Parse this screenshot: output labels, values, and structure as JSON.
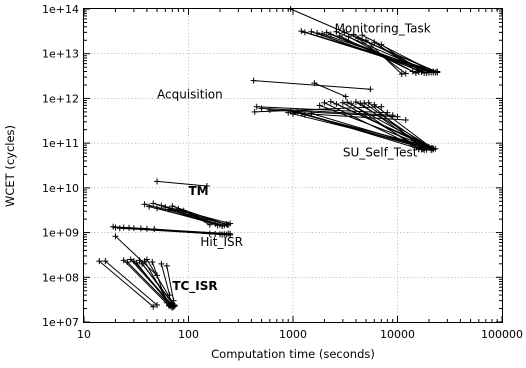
{
  "chart_data": {
    "type": "scatter",
    "xscale": "log",
    "yscale": "log",
    "xlim": [
      10,
      100000
    ],
    "ylim": [
      10000000,
      100000000000000
    ],
    "xlabel": "Computation time (seconds)",
    "ylabel": "WCET (cycles)",
    "x_ticks": [
      "10",
      "100",
      "1000",
      "10000",
      "100000"
    ],
    "y_ticks": [
      "1e+07",
      "1e+08",
      "1e+09",
      "1e+10",
      "1e+11",
      "1e+12",
      "1e+13",
      "1e+14"
    ],
    "grid": true,
    "annotations": [
      {
        "text": "Monitoring_Task",
        "x": 2500,
        "y": 30000000000000,
        "bold": false
      },
      {
        "text": "Acquisition",
        "x": 50,
        "y": 1000000000000,
        "bold": false
      },
      {
        "text": "SU_Self_Test",
        "x": 3000,
        "y": 50000000000,
        "bold": false
      },
      {
        "text": "TM",
        "x": 100,
        "y": 7000000000,
        "bold": true
      },
      {
        "text": "Hit_ISR",
        "x": 130,
        "y": 500000000,
        "bold": false
      },
      {
        "text": "TC_ISR",
        "x": 70,
        "y": 52000000,
        "bold": true
      }
    ],
    "groups": [
      {
        "name": "Monitoring_Task",
        "segments": [
          [
            [
              950,
              100000000000000
            ],
            [
              24000,
              3800000000000
            ]
          ],
          [
            [
              1200,
              32000000000000
            ],
            [
              24000,
              4000000000000
            ]
          ],
          [
            [
              1300,
              30000000000000
            ],
            [
              22000,
              3800000000000
            ]
          ],
          [
            [
              1500,
              31000000000000
            ],
            [
              20000,
              3900000000000
            ]
          ],
          [
            [
              1700,
              29000000000000
            ],
            [
              19000,
              3700000000000
            ]
          ],
          [
            [
              1900,
              28000000000000
            ],
            [
              23000,
              3800000000000
            ]
          ],
          [
            [
              2100,
              30000000000000
            ],
            [
              18000,
              4200000000000
            ]
          ],
          [
            [
              2300,
              27000000000000
            ],
            [
              17000,
              3900000000000
            ]
          ],
          [
            [
              2600,
              31000000000000
            ],
            [
              21000,
              3800000000000
            ]
          ],
          [
            [
              2800,
              25000000000000
            ],
            [
              15000,
              3700000000000
            ]
          ],
          [
            [
              3100,
              30000000000000
            ],
            [
              24000,
              3900000000000
            ]
          ],
          [
            [
              3400,
              24000000000000
            ],
            [
              14000,
              4000000000000
            ]
          ],
          [
            [
              3800,
              27000000000000
            ],
            [
              20000,
              3800000000000
            ]
          ],
          [
            [
              4200,
              22000000000000
            ],
            [
              12000,
              3600000000000
            ]
          ],
          [
            [
              4600,
              26000000000000
            ],
            [
              22000,
              4000000000000
            ]
          ],
          [
            [
              5000,
              20000000000000
            ],
            [
              11000,
              3500000000000
            ]
          ],
          [
            [
              6000,
              18000000000000
            ],
            [
              16000,
              3900000000000
            ]
          ],
          [
            [
              7000,
              16000000000000
            ],
            [
              18000,
              3700000000000
            ]
          ]
        ]
      },
      {
        "name": "Acquisition / SU_Self_Test",
        "segments": [
          [
            [
              420,
              2500000000000
            ],
            [
              5500,
              1600000000000
            ]
          ],
          [
            [
              430,
              500000000000
            ],
            [
              7000,
              650000000000
            ]
          ],
          [
            [
              450,
              650000000000
            ],
            [
              8000,
              480000000000
            ]
          ],
          [
            [
              500,
              600000000000
            ],
            [
              9000,
              420000000000
            ]
          ],
          [
            [
              600,
              550000000000
            ],
            [
              10000,
              390000000000
            ]
          ],
          [
            [
              900,
              480000000000
            ],
            [
              12000,
              330000000000
            ]
          ],
          [
            [
              950,
              520000000000
            ],
            [
              18000,
              90000000000
            ]
          ],
          [
            [
              1000,
              450000000000
            ],
            [
              20000,
              80000000000
            ]
          ],
          [
            [
              1100,
              500000000000
            ],
            [
              16000,
              75000000000
            ]
          ],
          [
            [
              1200,
              470000000000
            ],
            [
              21000,
              70000000000
            ]
          ],
          [
            [
              1300,
              430000000000
            ],
            [
              14000,
              90000000000
            ]
          ],
          [
            [
              1500,
              460000000000
            ],
            [
              22000,
              72000000000
            ]
          ],
          [
            [
              1600,
              2200000000000
            ],
            [
              3200,
              1100000000000
            ]
          ],
          [
            [
              1800,
              700000000000
            ],
            [
              19000,
              85000000000
            ]
          ],
          [
            [
              2000,
              800000000000
            ],
            [
              17000,
              72000000000
            ]
          ],
          [
            [
              2300,
              850000000000
            ],
            [
              23000,
              75000000000
            ]
          ],
          [
            [
              2600,
              750000000000
            ],
            [
              20000,
              82000000000
            ]
          ],
          [
            [
              3000,
              800000000000
            ],
            [
              18000,
              70000000000
            ]
          ],
          [
            [
              3300,
              820000000000
            ],
            [
              21000,
              78000000000
            ]
          ],
          [
            [
              3600,
              760000000000
            ],
            [
              16000,
              73000000000
            ]
          ],
          [
            [
              4000,
              830000000000
            ],
            [
              22000,
              76000000000
            ]
          ],
          [
            [
              4400,
              780000000000
            ],
            [
              19000,
              71000000000
            ]
          ],
          [
            [
              4800,
              790000000000
            ],
            [
              20000,
              79000000000
            ]
          ],
          [
            [
              5300,
              800000000000
            ],
            [
              17500,
              74000000000
            ]
          ],
          [
            [
              6000,
              720000000000
            ],
            [
              21500,
              77000000000
            ]
          ]
        ]
      },
      {
        "name": "TM",
        "segments": [
          [
            [
              50,
              14000000000
            ],
            [
              150,
              11000000000
            ]
          ],
          [
            [
              38,
              4300000000
            ],
            [
              240,
              1500000000
            ]
          ],
          [
            [
              42,
              3800000000
            ],
            [
              220,
              1450000000
            ]
          ],
          [
            [
              46,
              4500000000
            ],
            [
              250,
              1600000000
            ]
          ],
          [
            [
              50,
              3500000000
            ],
            [
              210,
              1400000000
            ]
          ],
          [
            [
              55,
              4000000000
            ],
            [
              230,
              1550000000
            ]
          ],
          [
            [
              60,
              3700000000
            ],
            [
              200,
              1500000000
            ]
          ],
          [
            [
              65,
              3300000000
            ],
            [
              190,
              1450000000
            ]
          ],
          [
            [
              70,
              3900000000
            ],
            [
              235,
              1500000000
            ]
          ],
          [
            [
              80,
              3400000000
            ],
            [
              180,
              1550000000
            ]
          ],
          [
            [
              90,
              3100000000
            ],
            [
              160,
              1500000000
            ]
          ]
        ]
      },
      {
        "name": "Hit_ISR",
        "segments": [
          [
            [
              19,
              1350000000
            ],
            [
              250,
              880000000
            ]
          ],
          [
            [
              20,
              1300000000
            ],
            [
              240,
              950000000
            ]
          ],
          [
            [
              22,
              1250000000
            ],
            [
              230,
              900000000
            ]
          ],
          [
            [
              24,
              1300000000
            ],
            [
              220,
              920000000
            ]
          ],
          [
            [
              27,
              1280000000
            ],
            [
              250,
              940000000
            ]
          ],
          [
            [
              30,
              1260000000
            ],
            [
              210,
              900000000
            ]
          ],
          [
            [
              35,
              1240000000
            ],
            [
              200,
              920000000
            ]
          ],
          [
            [
              40,
              1220000000
            ],
            [
              180,
              930000000
            ]
          ],
          [
            [
              47,
              1200000000
            ],
            [
              160,
              950000000
            ]
          ]
        ]
      },
      {
        "name": "TC_ISR",
        "segments": [
          [
            [
              14,
              230000000
            ],
            [
              46,
              22000000
            ]
          ],
          [
            [
              16,
              230000000
            ],
            [
              50,
              24000000
            ]
          ],
          [
            [
              20,
              830000000
            ],
            [
              50,
              110000000
            ]
          ],
          [
            [
              24,
              240000000
            ],
            [
              65,
              23000000
            ]
          ],
          [
            [
              26,
              220000000
            ],
            [
              70,
              21000000
            ]
          ],
          [
            [
              28,
              250000000
            ],
            [
              68,
              25000000
            ]
          ],
          [
            [
              30,
              230000000
            ],
            [
              72,
              22000000
            ]
          ],
          [
            [
              32,
              210000000
            ],
            [
              66,
              24000000
            ]
          ],
          [
            [
              34,
              240000000
            ],
            [
              74,
              23000000
            ]
          ],
          [
            [
              36,
              200000000
            ],
            [
              70,
              26000000
            ]
          ],
          [
            [
              38,
              230000000
            ],
            [
              68,
              22000000
            ]
          ],
          [
            [
              40,
              250000000
            ],
            [
              73,
              24000000
            ]
          ],
          [
            [
              45,
              220000000
            ],
            [
              62,
              27000000
            ]
          ],
          [
            [
              55,
              200000000
            ],
            [
              66,
              40000000
            ]
          ],
          [
            [
              62,
              180000000
            ],
            [
              72,
              30000000
            ]
          ]
        ]
      }
    ]
  }
}
